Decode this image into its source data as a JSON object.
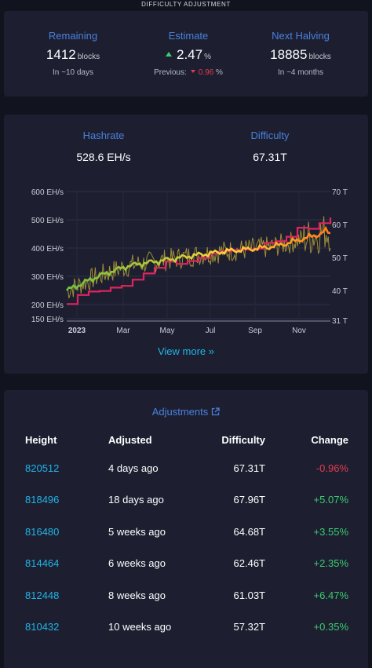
{
  "page_title": "DIFFICULTY ADJUSTMENT",
  "stats": {
    "remaining": {
      "label": "Remaining",
      "value": "1412",
      "unit": "blocks",
      "sub": "In ~10 days"
    },
    "estimate": {
      "label": "Estimate",
      "value": "2.47",
      "unit": "%",
      "previous_label": "Previous:",
      "previous_value": "0.96",
      "previous_unit": "%"
    },
    "next_halving": {
      "label": "Next Halving",
      "value": "18885",
      "unit": "blocks",
      "sub": "In ~4 months"
    }
  },
  "metrics": {
    "hashrate": {
      "label": "Hashrate",
      "value": "528.6 EH/s"
    },
    "difficulty": {
      "label": "Difficulty",
      "value": "67.31T"
    }
  },
  "colors": {
    "accent": "#4a80dc",
    "link": "#20b4e6",
    "positive": "#3bcc6e",
    "negative": "#e53b4b",
    "difficulty_line": "#e0245e",
    "hashrate_line": "#ff9a1f",
    "hashrate_raw": "#b5a03a"
  },
  "view_more": "View more »",
  "chart_data": {
    "type": "line",
    "left_axis_ticks": [
      "600 EH/s",
      "500 EH/s",
      "400 EH/s",
      "300 EH/s",
      "200 EH/s",
      "150 EH/s"
    ],
    "right_axis_ticks": [
      "70 T",
      "60 T",
      "50 T",
      "40 T",
      "31 T"
    ],
    "x_ticks": [
      "2023",
      "Mar",
      "May",
      "Jul",
      "Sep",
      "Nov"
    ],
    "x_range": [
      "2023-01-01",
      "2023-12-01"
    ],
    "hashrate_range_ehs": [
      150,
      600
    ],
    "difficulty_range_t": [
      31,
      71
    ],
    "series": [
      {
        "values": [
          [
            0,
            202
          ],
          [
            14,
            202
          ],
          [
            14,
            234
          ],
          [
            28,
            234
          ],
          [
            28,
            246
          ],
          [
            42,
            246
          ],
          [
            42,
            248
          ],
          [
            56,
            248
          ],
          [
            56,
            260
          ],
          [
            70,
            260
          ],
          [
            70,
            266
          ],
          [
            84,
            266
          ],
          [
            84,
            288
          ],
          [
            98,
            288
          ],
          [
            98,
            310
          ],
          [
            112,
            310
          ],
          [
            112,
            330
          ],
          [
            126,
            330
          ],
          [
            126,
            352
          ],
          [
            140,
            352
          ],
          [
            140,
            344
          ],
          [
            154,
            344
          ],
          [
            154,
            354
          ],
          [
            168,
            354
          ],
          [
            168,
            365
          ],
          [
            182,
            365
          ],
          [
            182,
            380
          ],
          [
            196,
            380
          ],
          [
            196,
            388
          ],
          [
            210,
            388
          ],
          [
            210,
            393
          ],
          [
            224,
            393
          ],
          [
            224,
            395
          ],
          [
            238,
            395
          ],
          [
            238,
            398
          ],
          [
            252,
            398
          ],
          [
            252,
            418
          ],
          [
            266,
            418
          ],
          [
            266,
            424
          ],
          [
            280,
            424
          ],
          [
            280,
            440
          ],
          [
            294,
            440
          ],
          [
            294,
            472
          ],
          [
            308,
            472
          ],
          [
            308,
            468
          ],
          [
            322,
            468
          ],
          [
            322,
            488
          ],
          [
            336,
            488
          ],
          [
            336,
            508
          ],
          [
            336,
            508
          ]
        ]
      },
      {
        "values": [
          [
            0,
            250
          ],
          [
            20,
            275
          ],
          [
            40,
            300
          ],
          [
            60,
            320
          ],
          [
            80,
            338
          ],
          [
            100,
            347
          ],
          [
            120,
            355
          ],
          [
            140,
            364
          ],
          [
            160,
            373
          ],
          [
            180,
            380
          ],
          [
            200,
            388
          ],
          [
            220,
            393
          ],
          [
            240,
            398
          ],
          [
            260,
            404
          ],
          [
            280,
            416
          ],
          [
            300,
            432
          ],
          [
            320,
            447
          ],
          [
            330,
            460
          ],
          [
            336,
            452
          ]
        ]
      }
    ]
  },
  "adjustments": {
    "title": "Adjustments",
    "columns": [
      "Height",
      "Adjusted",
      "Difficulty",
      "Change"
    ],
    "rows": [
      {
        "height": "820512",
        "adjusted": "4 days ago",
        "difficulty": "67.31T",
        "change": "-0.96%",
        "positive": false
      },
      {
        "height": "818496",
        "adjusted": "18 days ago",
        "difficulty": "67.96T",
        "change": "+5.07%",
        "positive": true
      },
      {
        "height": "816480",
        "adjusted": "5 weeks ago",
        "difficulty": "64.68T",
        "change": "+3.55%",
        "positive": true
      },
      {
        "height": "814464",
        "adjusted": "6 weeks ago",
        "difficulty": "62.46T",
        "change": "+2.35%",
        "positive": true
      },
      {
        "height": "812448",
        "adjusted": "8 weeks ago",
        "difficulty": "61.03T",
        "change": "+6.47%",
        "positive": true
      },
      {
        "height": "810432",
        "adjusted": "10 weeks ago",
        "difficulty": "57.32T",
        "change": "+0.35%",
        "positive": true
      }
    ]
  }
}
